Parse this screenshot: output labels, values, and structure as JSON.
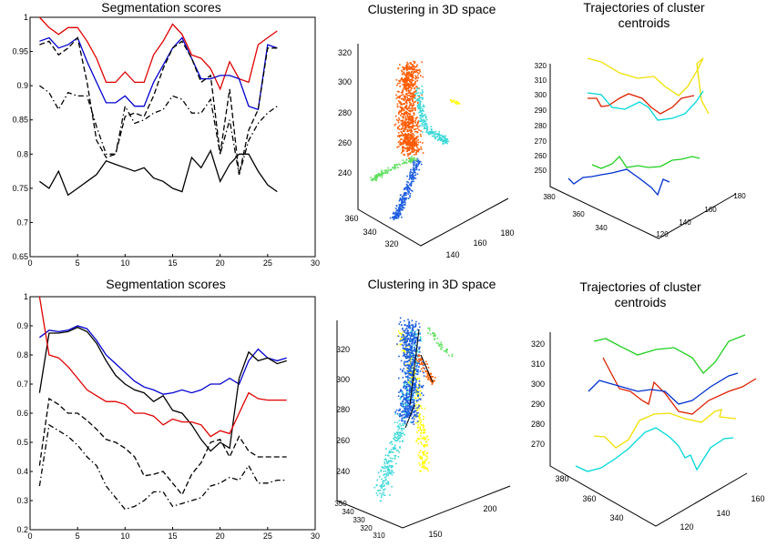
{
  "chart_data": [
    {
      "type": "line",
      "title": "Segmentation scores",
      "xlabel": "",
      "ylabel": "",
      "xlim": [
        0,
        30
      ],
      "ylim": [
        0.65,
        1.0
      ],
      "xticks": [
        "0",
        "5",
        "10",
        "15",
        "20",
        "25",
        "30"
      ],
      "yticks": [
        "0.65",
        "0.7",
        "0.75",
        "0.8",
        "0.85",
        "0.9",
        "0.95",
        "1"
      ],
      "x": [
        1,
        2,
        3,
        4,
        5,
        6,
        7,
        8,
        9,
        10,
        11,
        12,
        13,
        14,
        15,
        16,
        17,
        18,
        19,
        20,
        21,
        22,
        23,
        24,
        25,
        26
      ],
      "series": [
        {
          "name": "red",
          "color": "#e00000",
          "style": "solid",
          "values": [
            1.0,
            0.985,
            0.975,
            0.985,
            0.985,
            0.965,
            0.94,
            0.905,
            0.905,
            0.92,
            0.905,
            0.905,
            0.945,
            0.965,
            0.99,
            0.975,
            0.945,
            0.94,
            0.925,
            0.895,
            0.935,
            0.91,
            0.905,
            0.96,
            0.97,
            0.98
          ]
        },
        {
          "name": "blue",
          "color": "#0000d0",
          "style": "solid",
          "values": [
            0.965,
            0.97,
            0.955,
            0.96,
            0.97,
            0.935,
            0.905,
            0.875,
            0.875,
            0.885,
            0.87,
            0.87,
            0.905,
            0.93,
            0.955,
            0.97,
            0.94,
            0.91,
            0.91,
            0.915,
            0.915,
            0.91,
            0.87,
            0.865,
            0.96,
            0.955
          ]
        },
        {
          "name": "black-dashed",
          "color": "#000",
          "style": "dashed",
          "values": [
            0.96,
            0.965,
            0.945,
            0.955,
            0.97,
            0.905,
            0.82,
            0.795,
            0.8,
            0.855,
            0.86,
            0.855,
            0.885,
            0.925,
            0.955,
            0.965,
            0.94,
            0.905,
            0.915,
            0.8,
            0.895,
            0.77,
            0.835,
            0.865,
            0.955,
            0.955
          ]
        },
        {
          "name": "black-dashdot",
          "color": "#000",
          "style": "dashdot",
          "values": [
            0.9,
            0.89,
            0.865,
            0.89,
            0.885,
            0.885,
            0.84,
            0.8,
            0.8,
            0.87,
            0.845,
            0.85,
            0.86,
            0.865,
            0.885,
            0.88,
            0.86,
            0.86,
            0.88,
            0.8,
            0.85,
            0.77,
            0.82,
            0.845,
            0.86,
            0.87
          ]
        },
        {
          "name": "black",
          "color": "#000",
          "style": "solid",
          "values": [
            0.76,
            0.75,
            0.775,
            0.74,
            0.75,
            0.76,
            0.77,
            0.79,
            0.785,
            0.78,
            0.775,
            0.78,
            0.765,
            0.76,
            0.75,
            0.745,
            0.795,
            0.78,
            0.805,
            0.76,
            0.785,
            0.8,
            0.8,
            0.775,
            0.755,
            0.745
          ]
        }
      ]
    },
    {
      "type": "scatter",
      "title": "Clustering in 3D space",
      "zticks": [
        "240",
        "260",
        "280",
        "300",
        "320"
      ],
      "xticks": [
        "360",
        "340",
        "320"
      ],
      "yticks": [
        "140",
        "160",
        "180"
      ],
      "clusters": [
        {
          "name": "orange",
          "color": "#ff5a00"
        },
        {
          "name": "cyan",
          "color": "#3cd8d8"
        },
        {
          "name": "green",
          "color": "#60e060"
        },
        {
          "name": "blue",
          "color": "#1c5ce0"
        },
        {
          "name": "yellow",
          "color": "#ffff00"
        }
      ]
    },
    {
      "type": "line",
      "title": "Trajectories of cluster centroids",
      "title_lines": [
        "Trajectories of cluster",
        "centroids"
      ],
      "zticks": [
        "250",
        "260",
        "270",
        "280",
        "290",
        "300",
        "310",
        "320"
      ],
      "xticks": [
        "380",
        "360",
        "340"
      ],
      "yticks": [
        "120",
        "140",
        "160",
        "180"
      ],
      "series": [
        {
          "name": "yellow",
          "color": "#f0e000"
        },
        {
          "name": "red",
          "color": "#e02000"
        },
        {
          "name": "cyan",
          "color": "#00d8d8"
        },
        {
          "name": "green",
          "color": "#20d020"
        },
        {
          "name": "blue",
          "color": "#0030d0"
        }
      ]
    },
    {
      "type": "line",
      "title": "Segmentation scores",
      "xlabel": "",
      "ylabel": "",
      "xlim": [
        0,
        30
      ],
      "ylim": [
        0.2,
        1.0
      ],
      "xticks": [
        "0",
        "5",
        "10",
        "15",
        "20",
        "25",
        "30"
      ],
      "yticks": [
        "0.2",
        "0.3",
        "0.4",
        "0.5",
        "0.6",
        "0.7",
        "0.8",
        "0.9",
        "1"
      ],
      "x": [
        1,
        2,
        3,
        4,
        5,
        6,
        7,
        8,
        9,
        10,
        11,
        12,
        13,
        14,
        15,
        16,
        17,
        18,
        19,
        20,
        21,
        22,
        23,
        24,
        25,
        26,
        27
      ],
      "series": [
        {
          "name": "blue",
          "color": "#0000d0",
          "style": "solid",
          "values": [
            0.86,
            0.885,
            0.88,
            0.885,
            0.9,
            0.89,
            0.85,
            0.8,
            0.77,
            0.74,
            0.71,
            0.69,
            0.68,
            0.665,
            0.67,
            0.68,
            0.67,
            0.68,
            0.7,
            0.7,
            0.72,
            0.7,
            0.78,
            0.82,
            0.79,
            0.78,
            0.79
          ]
        },
        {
          "name": "black",
          "color": "#000",
          "style": "solid",
          "values": [
            0.67,
            0.875,
            0.875,
            0.88,
            0.895,
            0.88,
            0.84,
            0.78,
            0.73,
            0.7,
            0.68,
            0.67,
            0.64,
            0.66,
            0.61,
            0.6,
            0.56,
            0.51,
            0.47,
            0.5,
            0.48,
            0.72,
            0.81,
            0.78,
            0.79,
            0.77,
            0.78
          ]
        },
        {
          "name": "red",
          "color": "#e00000",
          "style": "solid",
          "values": [
            1.0,
            0.8,
            0.79,
            0.76,
            0.72,
            0.68,
            0.66,
            0.64,
            0.64,
            0.63,
            0.6,
            0.6,
            0.59,
            0.56,
            0.58,
            0.57,
            0.57,
            0.56,
            0.52,
            0.54,
            0.53,
            0.6,
            0.67,
            0.65,
            0.645,
            0.645,
            0.645
          ]
        },
        {
          "name": "black-dashed",
          "color": "#000",
          "style": "dashed",
          "values": [
            0.42,
            0.65,
            0.63,
            0.6,
            0.6,
            0.575,
            0.545,
            0.51,
            0.5,
            0.48,
            0.45,
            0.385,
            0.39,
            0.4,
            0.36,
            0.32,
            0.39,
            0.43,
            0.5,
            0.51,
            0.45,
            0.52,
            0.47,
            0.45,
            0.45,
            0.45,
            0.45
          ]
        },
        {
          "name": "black-dashdot",
          "color": "#000",
          "style": "dashdot",
          "values": [
            0.35,
            0.56,
            0.54,
            0.52,
            0.49,
            0.45,
            0.42,
            0.35,
            0.31,
            0.27,
            0.28,
            0.3,
            0.33,
            0.33,
            0.28,
            0.29,
            0.3,
            0.31,
            0.35,
            0.36,
            0.38,
            0.37,
            0.42,
            0.36,
            0.36,
            0.37,
            0.37
          ]
        }
      ]
    },
    {
      "type": "scatter",
      "title": "Clustering in 3D space",
      "zticks": [
        "240",
        "260",
        "280",
        "300",
        "320"
      ],
      "xticks": [
        "350",
        "340",
        "330",
        "320",
        "310"
      ],
      "yticks": [
        "150",
        "200"
      ],
      "clusters": [
        {
          "name": "blue",
          "color": "#1c5ce0"
        },
        {
          "name": "cyan",
          "color": "#3cd8d8"
        },
        {
          "name": "yellow",
          "color": "#ffff00"
        },
        {
          "name": "orange",
          "color": "#ff5a00"
        },
        {
          "name": "green",
          "color": "#60e060"
        },
        {
          "name": "black",
          "color": "#000000"
        }
      ]
    },
    {
      "type": "line",
      "title": "Trajectories of cluster centroids",
      "title_lines": [
        "Trajectories of cluster",
        "centroids"
      ],
      "zticks": [
        "270",
        "280",
        "290",
        "300",
        "310",
        "320"
      ],
      "xticks": [
        "380",
        "360",
        "340"
      ],
      "yticks": [
        "120",
        "140",
        "160"
      ],
      "series": [
        {
          "name": "green",
          "color": "#20d020"
        },
        {
          "name": "red",
          "color": "#e02000"
        },
        {
          "name": "blue",
          "color": "#0030d0"
        },
        {
          "name": "yellow",
          "color": "#f0e000"
        },
        {
          "name": "cyan",
          "color": "#00d8d8"
        }
      ]
    }
  ]
}
